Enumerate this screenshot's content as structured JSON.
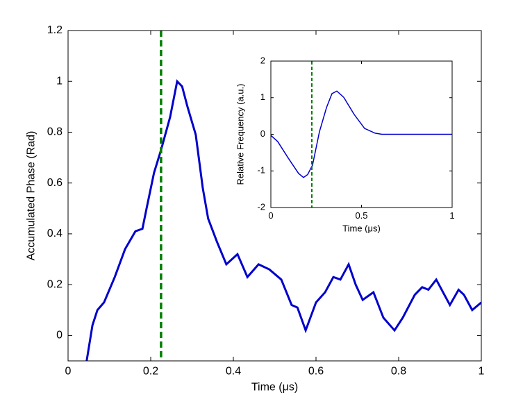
{
  "chart_data": [
    {
      "type": "line",
      "xlabel": "Time (μs)",
      "ylabel": "Accumulated Phase (Rad)",
      "xlim": [
        0,
        1
      ],
      "ylim": [
        -0.1,
        1.2
      ],
      "xticks": [
        0,
        0.2,
        0.4,
        0.6,
        0.8,
        1
      ],
      "yticks": [
        0,
        0.2,
        0.4,
        0.6,
        0.8,
        1,
        1.2
      ],
      "vline": 0.225,
      "vline_color": "#007f00",
      "series": [
        {
          "color": "#0000cc",
          "x": [
            0.045,
            0.059,
            0.071,
            0.087,
            0.113,
            0.138,
            0.163,
            0.18,
            0.19,
            0.208,
            0.225,
            0.247,
            0.264,
            0.276,
            0.289,
            0.309,
            0.326,
            0.339,
            0.36,
            0.383,
            0.41,
            0.434,
            0.461,
            0.487,
            0.516,
            0.541,
            0.555,
            0.575,
            0.6,
            0.622,
            0.642,
            0.659,
            0.679,
            0.696,
            0.713,
            0.739,
            0.763,
            0.79,
            0.81,
            0.839,
            0.857,
            0.872,
            0.891,
            0.914,
            0.924,
            0.945,
            0.958,
            0.978,
            1.0
          ],
          "values": [
            -0.1,
            0.04,
            0.1,
            0.13,
            0.23,
            0.34,
            0.41,
            0.42,
            0.5,
            0.64,
            0.73,
            0.86,
            1.0,
            0.98,
            0.9,
            0.79,
            0.58,
            0.46,
            0.37,
            0.28,
            0.32,
            0.23,
            0.28,
            0.26,
            0.22,
            0.12,
            0.11,
            0.02,
            0.13,
            0.17,
            0.23,
            0.22,
            0.28,
            0.2,
            0.14,
            0.17,
            0.07,
            0.02,
            0.07,
            0.16,
            0.19,
            0.18,
            0.22,
            0.15,
            0.12,
            0.18,
            0.16,
            0.1,
            0.13
          ]
        }
      ]
    },
    {
      "type": "line",
      "xlabel": "Time (μs)",
      "ylabel": "Relative Frequency (a.u.)",
      "xlim": [
        0,
        1
      ],
      "ylim": [
        -2,
        2
      ],
      "xticks": [
        0,
        0.5,
        1
      ],
      "yticks": [
        -2,
        -1,
        0,
        1,
        2
      ],
      "vline": 0.226,
      "vline_color": "#007f00",
      "series": [
        {
          "color": "#0000cc",
          "x": [
            0,
            0.038,
            0.096,
            0.153,
            0.18,
            0.203,
            0.23,
            0.268,
            0.307,
            0.337,
            0.364,
            0.402,
            0.46,
            0.517,
            0.575,
            0.613,
            1
          ],
          "values": [
            -0.03,
            -0.2,
            -0.65,
            -1.07,
            -1.18,
            -1.1,
            -0.84,
            0.07,
            0.73,
            1.11,
            1.18,
            1.01,
            0.54,
            0.16,
            0.03,
            0,
            0
          ]
        }
      ]
    }
  ]
}
